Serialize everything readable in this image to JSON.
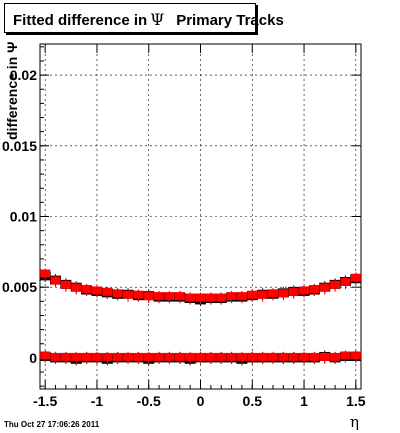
{
  "title": {
    "prefix": "Fitted difference in",
    "symbol": "Ψ",
    "suffix": "Primary Tracks"
  },
  "datestamp": "Thu Oct 27 17:06:26 2011",
  "chart_data": {
    "type": "scatter",
    "title": "Fitted difference in Ψ   Primary Tracks",
    "xlabel": "η",
    "ylabel": "difference in Ψ",
    "xlim": [
      -1.55,
      1.55
    ],
    "ylim": [
      -0.0022,
      0.0222
    ],
    "xticks": [
      "-1.5",
      "-1",
      "-0.5",
      "0",
      "0.5",
      "1",
      "1.5"
    ],
    "xtick_values": [
      -1.5,
      -1,
      -0.5,
      0,
      0.5,
      1,
      1.5
    ],
    "yticks": [
      "0",
      "0.005",
      "0.01",
      "0.015",
      "0.02"
    ],
    "ytick_values": [
      0,
      0.005,
      0.01,
      0.015,
      0.02
    ],
    "grid": true,
    "colors": {
      "series_a": "#000000",
      "series_b": "#ff0000"
    },
    "series": [
      {
        "marker": "square",
        "color": "#000000",
        "x": [
          -1.5,
          -1.4,
          -1.3,
          -1.2,
          -1.1,
          -1.0,
          -0.9,
          -0.8,
          -0.7,
          -0.6,
          -0.5,
          -0.4,
          -0.3,
          -0.2,
          -0.1,
          0.0,
          0.1,
          0.2,
          0.3,
          0.4,
          0.5,
          0.6,
          0.7,
          0.8,
          0.9,
          1.0,
          1.1,
          1.2,
          1.3,
          1.4,
          1.5
        ],
        "y": [
          0.0058,
          0.0055,
          0.0052,
          0.005,
          0.0048,
          0.0047,
          0.0046,
          0.0045,
          0.0045,
          0.0044,
          0.0044,
          0.0043,
          0.0043,
          0.0043,
          0.0042,
          0.0041,
          0.0042,
          0.0042,
          0.0043,
          0.0043,
          0.0044,
          0.0045,
          0.0045,
          0.0046,
          0.0047,
          0.0047,
          0.0048,
          0.005,
          0.0052,
          0.0054,
          0.0056
        ]
      },
      {
        "marker": "square",
        "color": "#ff0000",
        "x": [
          -1.5,
          -1.4,
          -1.3,
          -1.2,
          -1.1,
          -1.0,
          -0.9,
          -0.8,
          -0.7,
          -0.6,
          -0.5,
          -0.4,
          -0.3,
          -0.2,
          -0.1,
          0.0,
          0.1,
          0.2,
          0.3,
          0.4,
          0.5,
          0.6,
          0.7,
          0.8,
          0.9,
          1.0,
          1.1,
          1.2,
          1.3,
          1.4,
          1.5
        ],
        "y": [
          0.0059,
          0.0054,
          0.0051,
          0.0049,
          0.0048,
          0.0047,
          0.0046,
          0.0045,
          0.0044,
          0.0044,
          0.0043,
          0.0043,
          0.0043,
          0.0043,
          0.0042,
          0.0042,
          0.0042,
          0.0042,
          0.0043,
          0.0043,
          0.0044,
          0.0044,
          0.0045,
          0.0045,
          0.0046,
          0.0047,
          0.0048,
          0.0049,
          0.0051,
          0.0053,
          0.0056
        ]
      },
      {
        "marker": "square",
        "color": "#000000",
        "x": [
          -1.5,
          -1.4,
          -1.3,
          -1.2,
          -1.1,
          -1.0,
          -0.9,
          -0.8,
          -0.7,
          -0.6,
          -0.5,
          -0.4,
          -0.3,
          -0.2,
          -0.1,
          0.0,
          0.1,
          0.2,
          0.3,
          0.4,
          0.5,
          0.6,
          0.7,
          0.8,
          0.9,
          1.0,
          1.1,
          1.2,
          1.3,
          1.4,
          1.5
        ],
        "y": [
          0.0001,
          0.0,
          0.0,
          -0.0001,
          0.0,
          0.0,
          -0.0001,
          0.0,
          0.0,
          0.0,
          -0.0001,
          0.0,
          0.0,
          0.0,
          -0.0001,
          0.0,
          0.0,
          0.0,
          0.0,
          -0.0001,
          0.0,
          0.0,
          0.0,
          0.0,
          0.0,
          0.0,
          0.0,
          0.0001,
          0.0,
          0.0001,
          0.0001
        ]
      },
      {
        "marker": "square",
        "color": "#ff0000",
        "x": [
          -1.5,
          -1.4,
          -1.3,
          -1.2,
          -1.1,
          -1.0,
          -0.9,
          -0.8,
          -0.7,
          -0.6,
          -0.5,
          -0.4,
          -0.3,
          -0.2,
          -0.1,
          0.0,
          0.1,
          0.2,
          0.3,
          0.4,
          0.5,
          0.6,
          0.7,
          0.8,
          0.9,
          1.0,
          1.1,
          1.2,
          1.3,
          1.4,
          1.5
        ],
        "y": [
          0.0001,
          0.0,
          0.0,
          0.0,
          0.0,
          0.0,
          0.0,
          0.0,
          0.0,
          0.0,
          0.0,
          0.0,
          0.0,
          0.0,
          0.0,
          0.0,
          0.0,
          0.0,
          0.0,
          0.0,
          0.0,
          0.0,
          0.0,
          0.0,
          0.0,
          0.0,
          0.0,
          0.0,
          0.0,
          0.0001,
          0.0001
        ]
      }
    ]
  }
}
